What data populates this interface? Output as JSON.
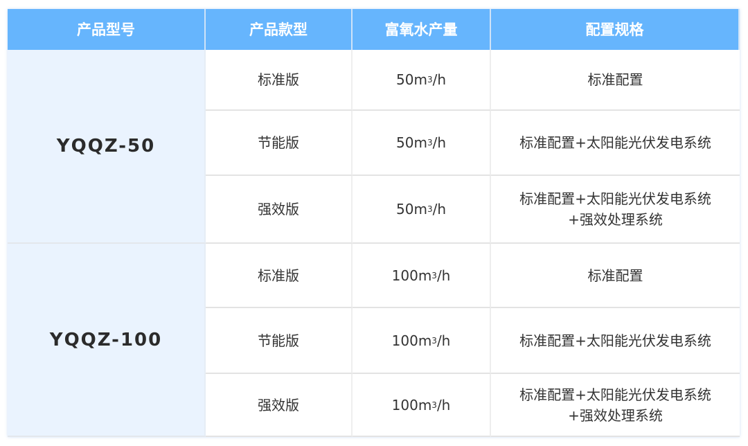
{
  "headers": [
    "产品型号",
    "产品款型",
    "富氧水产量",
    "配置规格"
  ],
  "groups": [
    {
      "model": "YQQZ-50",
      "rows": [
        {
          "variant": "标准版",
          "output": "50m",
          "unit_exp": "3",
          "unit_tail": "/h",
          "config": [
            "标准配置"
          ]
        },
        {
          "variant": "节能版",
          "output": "50m",
          "unit_exp": "3",
          "unit_tail": "/h",
          "config": [
            "标准配置+太阳能光伏发电系统"
          ]
        },
        {
          "variant": "强效版",
          "output": "50m",
          "unit_exp": "3",
          "unit_tail": "/h",
          "config": [
            "标准配置+太阳能光伏发电系统",
            "+强效处理系统"
          ]
        }
      ]
    },
    {
      "model": "YQQZ-100",
      "rows": [
        {
          "variant": "标准版",
          "output": "100m",
          "unit_exp": "3",
          "unit_tail": "/h",
          "config": [
            "标准配置"
          ]
        },
        {
          "variant": "节能版",
          "output": "100m",
          "unit_exp": "3",
          "unit_tail": "/h",
          "config": [
            "标准配置+太阳能光伏发电系统"
          ]
        },
        {
          "variant": "强效版",
          "output": "100m",
          "unit_exp": "3",
          "unit_tail": "/h",
          "config": [
            "标准配置+太阳能光伏发电系统",
            "+强效处理系统"
          ]
        }
      ]
    }
  ],
  "colors": {
    "header_bg": "#66b5fd",
    "model_bg": "#eaf3fe",
    "text": "#333333"
  }
}
